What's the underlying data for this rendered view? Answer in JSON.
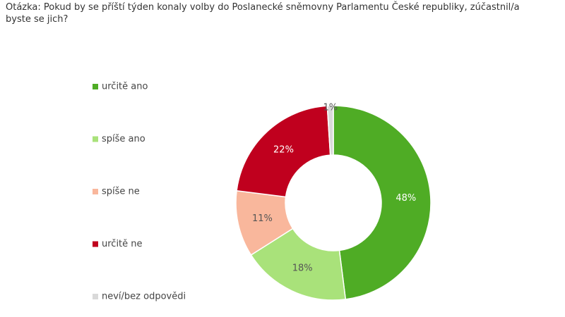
{
  "chart_data": {
    "type": "donut",
    "title": "Otázka: Pokud by se příští týden konaly volby do Poslanecké sněmovny Parlamentu České republiky, zúčastnil/a byste se jich?",
    "categories": [
      "určitě ano",
      "spíše ano",
      "spíše ne",
      "určitě ne",
      "neví/bez odpovědi"
    ],
    "values": [
      48,
      18,
      11,
      22,
      1
    ],
    "value_labels": [
      "48%",
      "18%",
      "11%",
      "22%",
      "1%"
    ],
    "colors": [
      "#4fac25",
      "#a9e27a",
      "#f9b79c",
      "#c0001e",
      "#d9d9d9"
    ],
    "legend": "left"
  }
}
